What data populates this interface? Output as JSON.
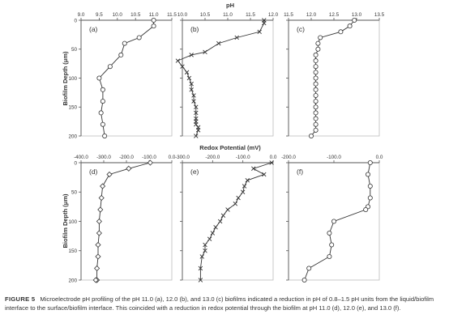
{
  "figure": {
    "top_axis_title": "pH",
    "mid_axis_title": "Redox Potential (mV)",
    "y_axis_title": "Biofilm Depth (μm)",
    "y_ticks": [
      "0",
      "50",
      "100",
      "150",
      "200"
    ]
  },
  "chart_data": [
    {
      "panel": "(a)",
      "type": "line",
      "marker": "circle",
      "xlim": [
        9.0,
        11.5
      ],
      "x_ticks": [
        "9.0",
        "9.5",
        "10.0",
        "10.5",
        "11.0",
        "11.5"
      ],
      "ylim": [
        0,
        200
      ],
      "y_inverted": true,
      "x_values": [
        11.0,
        11.0,
        10.6,
        10.2,
        10.1,
        9.8,
        9.5,
        9.6,
        9.6,
        9.55,
        9.6,
        9.65
      ],
      "y_values": [
        0,
        10,
        30,
        40,
        60,
        80,
        100,
        120,
        140,
        160,
        180,
        200
      ]
    },
    {
      "panel": "(b)",
      "type": "line",
      "marker": "x",
      "xlim": [
        10.0,
        12.0
      ],
      "x_ticks": [
        "10.0",
        "10.5",
        "11.0",
        "11.5",
        "12.0"
      ],
      "ylim": [
        0,
        200
      ],
      "y_inverted": true,
      "x_values": [
        11.8,
        11.8,
        11.7,
        11.2,
        10.8,
        10.5,
        10.2,
        9.9,
        10.0,
        10.1,
        10.15,
        10.2,
        10.2,
        10.25,
        10.25,
        10.3,
        10.3,
        10.3,
        10.3,
        10.3,
        10.35,
        10.35,
        10.3
      ],
      "y_values": [
        0,
        5,
        20,
        30,
        40,
        55,
        60,
        70,
        80,
        90,
        100,
        110,
        120,
        130,
        140,
        150,
        160,
        170,
        175,
        180,
        185,
        190,
        200
      ]
    },
    {
      "panel": "(c)",
      "type": "line",
      "marker": "circle",
      "xlim": [
        11.5,
        13.5
      ],
      "x_ticks": [
        "11.5",
        "12.0",
        "12.5",
        "13.0",
        "13.5"
      ],
      "ylim": [
        0,
        200
      ],
      "y_inverted": true,
      "x_values": [
        12.95,
        12.85,
        12.65,
        12.2,
        12.15,
        12.15,
        12.1,
        12.1,
        12.1,
        12.1,
        12.1,
        12.1,
        12.1,
        12.1,
        12.1,
        12.1,
        12.1,
        12.1,
        12.1,
        12.1,
        12.0
      ],
      "y_values": [
        0,
        10,
        20,
        30,
        40,
        50,
        60,
        70,
        80,
        90,
        100,
        110,
        120,
        130,
        140,
        150,
        160,
        170,
        180,
        190,
        200
      ]
    },
    {
      "panel": "(d)",
      "type": "line",
      "marker": "diamond",
      "xlim": [
        -400,
        0
      ],
      "x_ticks": [
        "-400.0",
        "-300.0",
        "-200.0",
        "-100.0",
        "0.0"
      ],
      "ylim": [
        0,
        200
      ],
      "y_inverted": true,
      "x_values": [
        -95,
        -190,
        -275,
        -305,
        -310,
        -315,
        -320,
        -320,
        -325,
        -325,
        -330,
        -330,
        -335
      ],
      "y_values": [
        0,
        10,
        20,
        40,
        60,
        80,
        100,
        120,
        140,
        160,
        180,
        200,
        200
      ]
    },
    {
      "panel": "(e)",
      "type": "line",
      "marker": "x",
      "xlim": [
        -300,
        0
      ],
      "x_ticks": [
        "-300.0",
        "-200.0",
        "-100.0",
        "0.0"
      ],
      "ylim": [
        0,
        200
      ],
      "y_inverted": true,
      "x_values": [
        -5,
        -65,
        -30,
        -85,
        -95,
        -100,
        -115,
        -125,
        -150,
        -165,
        -175,
        -190,
        -200,
        -210,
        -225,
        -225,
        -235,
        -240,
        -240
      ],
      "y_values": [
        0,
        10,
        20,
        30,
        40,
        50,
        60,
        70,
        80,
        90,
        100,
        110,
        120,
        130,
        140,
        150,
        160,
        180,
        200
      ]
    },
    {
      "panel": "(f)",
      "type": "line",
      "marker": "circle",
      "xlim": [
        -200,
        0
      ],
      "x_ticks": [
        "-200.0",
        "-100.0",
        "0.0"
      ],
      "ylim": [
        0,
        200
      ],
      "y_inverted": true,
      "x_values": [
        -20,
        -25,
        -20,
        -20,
        -25,
        -30,
        -100,
        -110,
        -105,
        -110,
        -155,
        -165
      ],
      "y_values": [
        0,
        20,
        40,
        60,
        75,
        80,
        100,
        120,
        140,
        160,
        180,
        200
      ]
    }
  ],
  "caption": {
    "label": "FIGURE 5",
    "text": "Microelectrode pH profiling of the pH 11.0 (a), 12.0 (b), and 13.0 (c) biofilms indicated a reduction in pH of 0.8–1.5 pH units from the liquid/biofilm interface to the surface/biofilm interface. This coincided with a reduction in redox potential through the biofilm at pH 11.0 (d), 12.0 (e), and 13.0 (f)."
  }
}
